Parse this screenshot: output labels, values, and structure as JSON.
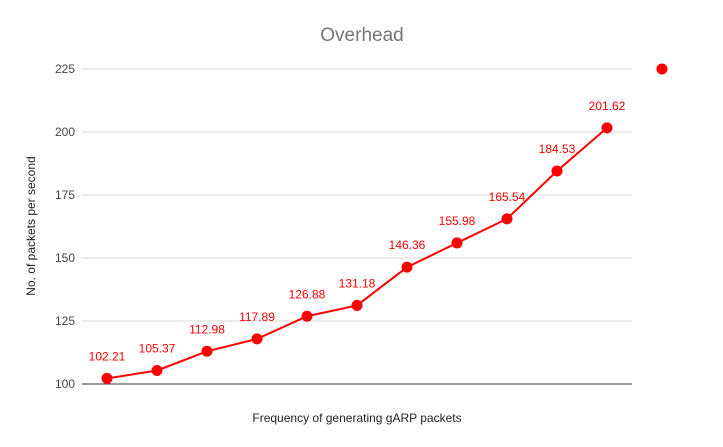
{
  "chart_data": {
    "type": "line",
    "title": "Overhead",
    "xlabel": "Frequency of generating gARP packets",
    "ylabel": "No. of packets per second",
    "ylim": [
      100,
      225
    ],
    "yticks": [
      100,
      125,
      150,
      175,
      200,
      225
    ],
    "x": [
      1,
      2,
      3,
      4,
      5,
      6,
      7,
      8,
      9,
      10,
      11
    ],
    "series": [
      {
        "values": [
          102.21,
          105.37,
          112.98,
          117.89,
          126.88,
          131.18,
          146.36,
          155.98,
          165.54,
          184.53,
          201.62
        ],
        "labels": [
          "102.21",
          "105.37",
          "112.98",
          "117.89",
          "126.88",
          "131.18",
          "146.36",
          "155.98",
          "165.54",
          "184.53",
          "201.62"
        ],
        "color": "#ff0000"
      }
    ],
    "grid": true,
    "legend": "right",
    "legend_marker_color": "#ff0000"
  }
}
